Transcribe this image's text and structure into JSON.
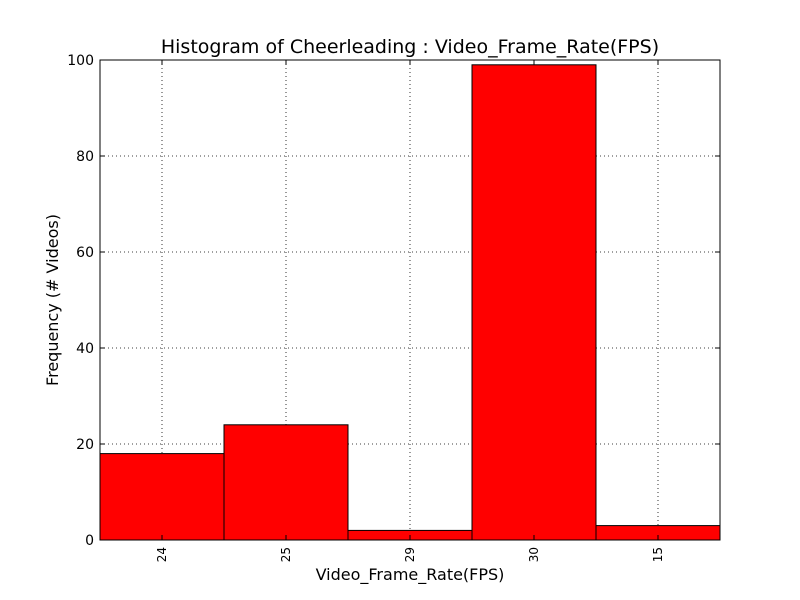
{
  "chart_data": {
    "type": "bar",
    "title": "Histogram of Cheerleading : Video_Frame_Rate(FPS)",
    "xlabel": "Video_Frame_Rate(FPS)",
    "ylabel": "Frequency (# Videos)",
    "categories": [
      "24",
      "25",
      "29",
      "30",
      "15"
    ],
    "values": [
      18,
      24,
      2,
      99,
      3
    ],
    "ylim": [
      0,
      100
    ],
    "yticks": [
      0,
      20,
      40,
      60,
      80,
      100
    ],
    "grid": true,
    "bar_color": "#ff0000",
    "edge_color": "#000000"
  }
}
